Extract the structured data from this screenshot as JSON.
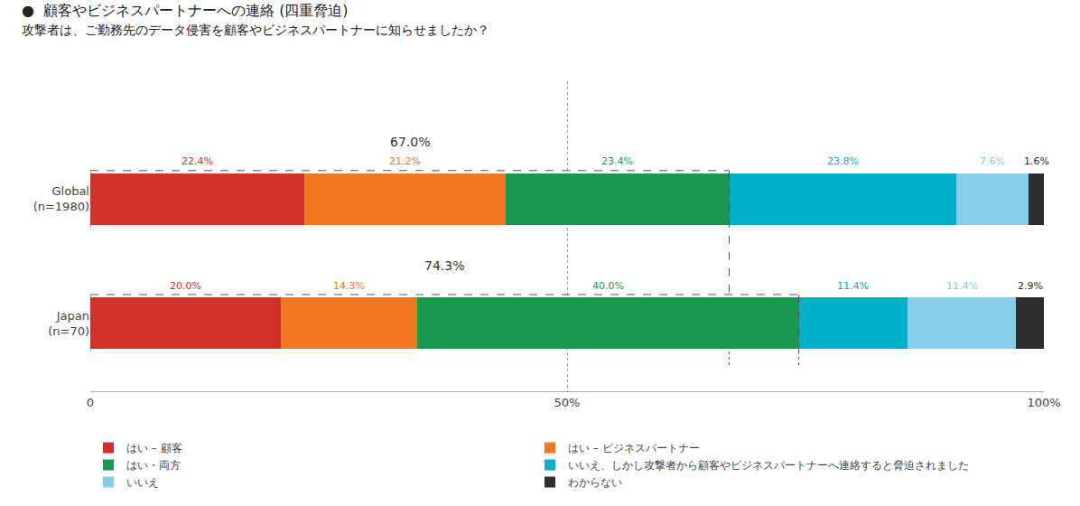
{
  "chart_data": {
    "type": "bar",
    "orientation": "horizontal",
    "stacked": true,
    "title": "●  顧客やビジネスパートナーへの連絡 (四重脅迫)",
    "subtitle": "攻撃者は、ご勤務先のデータ侵害を顧客やビジネスパートナーに知らせましたか？",
    "categories": [
      "Global\n(n=1980)",
      "Japan\n(n=70)"
    ],
    "series": [
      {
        "name": "はい – 顧客",
        "color": "#d0312d",
        "values": [
          22.4,
          20.0
        ],
        "value_labels": [
          "22.4%",
          "20.0%"
        ]
      },
      {
        "name": "はい – ビジネスパートナー",
        "color": "#f07820",
        "values": [
          21.2,
          14.3
        ],
        "value_labels": [
          "21.2%",
          "14.3%"
        ]
      },
      {
        "name": "はい・両方",
        "color": "#1a9850",
        "values": [
          23.4,
          40.0
        ],
        "value_labels": [
          "23.4%",
          "40.0%"
        ]
      },
      {
        "name": "いいえ、しかし攻撃者から顧客やビジネスパートナーへ連絡すると脅迫されました",
        "color": "#00b0c8",
        "values": [
          23.8,
          11.4
        ],
        "value_labels": [
          "23.8%",
          "11.4%"
        ]
      },
      {
        "name": "いいえ",
        "color": "#87ceeb",
        "values": [
          7.6,
          11.4
        ],
        "value_labels": [
          "7.6%",
          "11.4%"
        ]
      },
      {
        "name": "わからない",
        "color": "#2d2d2d",
        "values": [
          1.6,
          2.9
        ],
        "value_labels": [
          "1.6%",
          "2.9%"
        ]
      }
    ],
    "xlim": [
      0,
      100
    ],
    "xticks": [
      0,
      {
        "value": 50,
        "label": "50%"
      },
      {
        "value": 100,
        "label": "100%"
      }
    ],
    "grid": true,
    "data_labels": true,
    "legend": "bottom",
    "annotations": [
      {
        "text": "67.0%",
        "value": 67.0,
        "category": "Global\n(n=1980)"
      },
      {
        "text": "74.3%",
        "value": 74.3,
        "category": "Japan\n(n=70)"
      }
    ]
  }
}
